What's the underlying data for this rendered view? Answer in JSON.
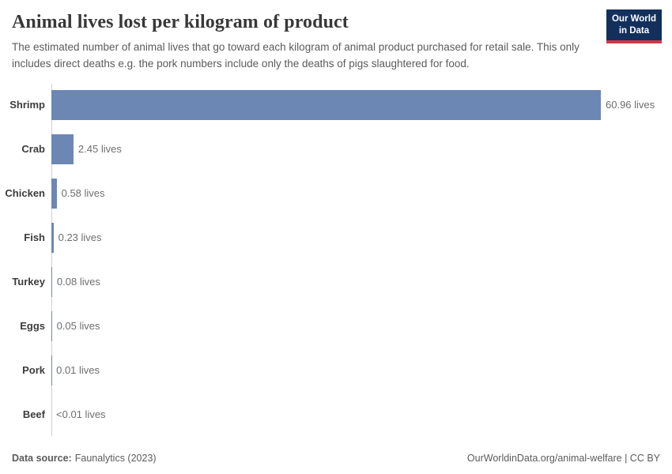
{
  "header": {
    "title": "Animal lives lost per kilogram of product",
    "subtitle": "The estimated number of animal lives that go toward each kilogram of animal product purchased for retail sale. This only includes direct deaths e.g. the pork numbers include only the deaths of pigs slaughtered for food.",
    "logo": {
      "line1": "Our World",
      "line2": "in Data"
    }
  },
  "chart_data": {
    "type": "bar",
    "orientation": "horizontal",
    "title": "Animal lives lost per kilogram of product",
    "unit": "lives",
    "categories": [
      "Shrimp",
      "Crab",
      "Chicken",
      "Fish",
      "Turkey",
      "Eggs",
      "Pork",
      "Beef"
    ],
    "values": [
      60.96,
      2.45,
      0.58,
      0.23,
      0.08,
      0.05,
      0.01,
      0.004
    ],
    "value_labels": [
      "60.96 lives",
      "2.45 lives",
      "0.58 lives",
      "0.23 lives",
      "0.08 lives",
      "0.05 lives",
      "0.01 lives",
      "<0.01 lives"
    ],
    "xlim": [
      0,
      61
    ],
    "grid": false,
    "legend": "none",
    "bar_color": "#6d87b5",
    "axis_line_color": "#cfcfcf"
  },
  "footer": {
    "source_label": "Data source:",
    "source_value": "Faunalytics (2023)",
    "attribution": "OurWorldinData.org/animal-welfare | CC BY"
  },
  "colors": {
    "title_text": "#383838",
    "subtitle_text": "#5b5b5b",
    "logo_background": "#12305b",
    "logo_accent": "#d0374c",
    "bar": "#6d87b5"
  }
}
